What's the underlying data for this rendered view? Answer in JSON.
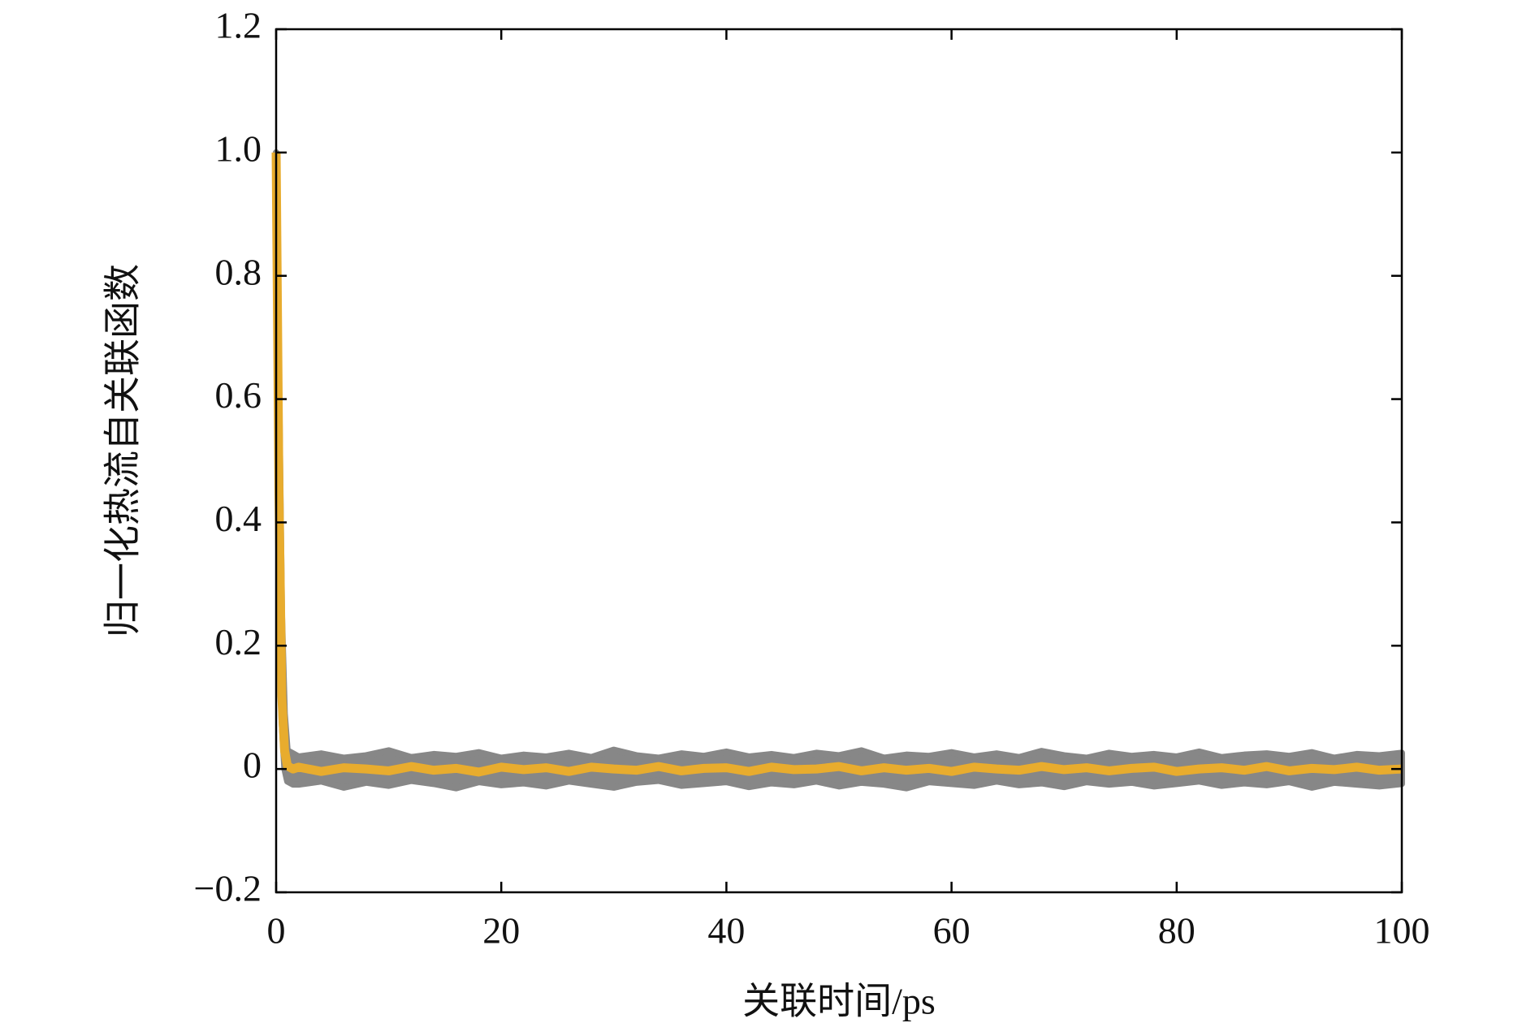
{
  "chart_data": {
    "type": "line",
    "xlabel": "关联时间/ps",
    "ylabel": "归一化热流自关联函数",
    "x": [
      0,
      0.25,
      0.5,
      0.75,
      1,
      1.5,
      2,
      4,
      6,
      8,
      10,
      12,
      14,
      16,
      18,
      20,
      22,
      24,
      26,
      28,
      30,
      32,
      34,
      36,
      38,
      40,
      42,
      44,
      46,
      48,
      50,
      52,
      54,
      56,
      58,
      60,
      62,
      64,
      66,
      68,
      70,
      72,
      74,
      76,
      78,
      80,
      82,
      84,
      86,
      88,
      90,
      92,
      94,
      96,
      98,
      100
    ],
    "series": [
      {
        "color": "#878787",
        "band": true,
        "values": [
          1,
          0.62,
          0.25,
          0.09,
          0.03,
          0.025,
          0.02,
          0.025,
          0.018,
          0.022,
          0.03,
          0.019,
          0.024,
          0.021,
          0.027,
          0.018,
          0.023,
          0.02,
          0.026,
          0.019,
          0.031,
          0.022,
          0.018,
          0.025,
          0.021,
          0.028,
          0.02,
          0.024,
          0.019,
          0.026,
          0.022,
          0.03,
          0.018,
          0.023,
          0.021,
          0.027,
          0.02,
          0.025,
          0.019,
          0.029,
          0.022,
          0.018,
          0.026,
          0.021,
          0.024,
          0.02,
          0.028,
          0.019,
          0.023,
          0.025,
          0.021,
          0.027,
          0.018,
          0.024,
          0.022,
          0.026
        ],
        "lower": [
          1,
          0.3,
          0.08,
          0,
          -0.02,
          -0.025,
          -0.025,
          -0.02,
          -0.03,
          -0.022,
          -0.027,
          -0.019,
          -0.024,
          -0.031,
          -0.021,
          -0.026,
          -0.023,
          -0.028,
          -0.02,
          -0.025,
          -0.03,
          -0.022,
          -0.019,
          -0.027,
          -0.024,
          -0.021,
          -0.029,
          -0.023,
          -0.026,
          -0.02,
          -0.028,
          -0.022,
          -0.025,
          -0.031,
          -0.021,
          -0.024,
          -0.027,
          -0.02,
          -0.026,
          -0.023,
          -0.029,
          -0.021,
          -0.025,
          -0.022,
          -0.028,
          -0.024,
          -0.02,
          -0.027,
          -0.023,
          -0.026,
          -0.021,
          -0.03,
          -0.022,
          -0.025,
          -0.028,
          -0.024
        ]
      },
      {
        "color": "#e8ac2e",
        "values": [
          1,
          0.45,
          0.12,
          0.03,
          0.005,
          0,
          0.003,
          -0.004,
          0.002,
          0,
          -0.003,
          0.004,
          -0.002,
          0.001,
          -0.005,
          0.003,
          -0.001,
          0.002,
          -0.004,
          0.003,
          0,
          -0.002,
          0.004,
          -0.003,
          0.001,
          0.002,
          -0.004,
          0.003,
          -0.001,
          0,
          0.004,
          -0.003,
          0.002,
          -0.002,
          0.001,
          -0.004,
          0.003,
          0,
          -0.002,
          0.004,
          -0.001,
          0.002,
          -0.003,
          0.001,
          0.003,
          -0.004,
          0,
          0.002,
          -0.002,
          0.004,
          -0.003,
          0.001,
          -0.001,
          0.003,
          -0.002,
          0
        ]
      }
    ],
    "xlim": [
      0,
      100
    ],
    "xticks": [
      0,
      20,
      40,
      60,
      80,
      100
    ],
    "ylim": [
      -0.2,
      1.2
    ],
    "yticks": [
      {
        "value": -0.2,
        "label": "−0.2"
      },
      0,
      0.2,
      0.4,
      0.6,
      0.8,
      {
        "value": 1.0,
        "label": "1.0"
      },
      1.2
    ],
    "grid": false
  }
}
